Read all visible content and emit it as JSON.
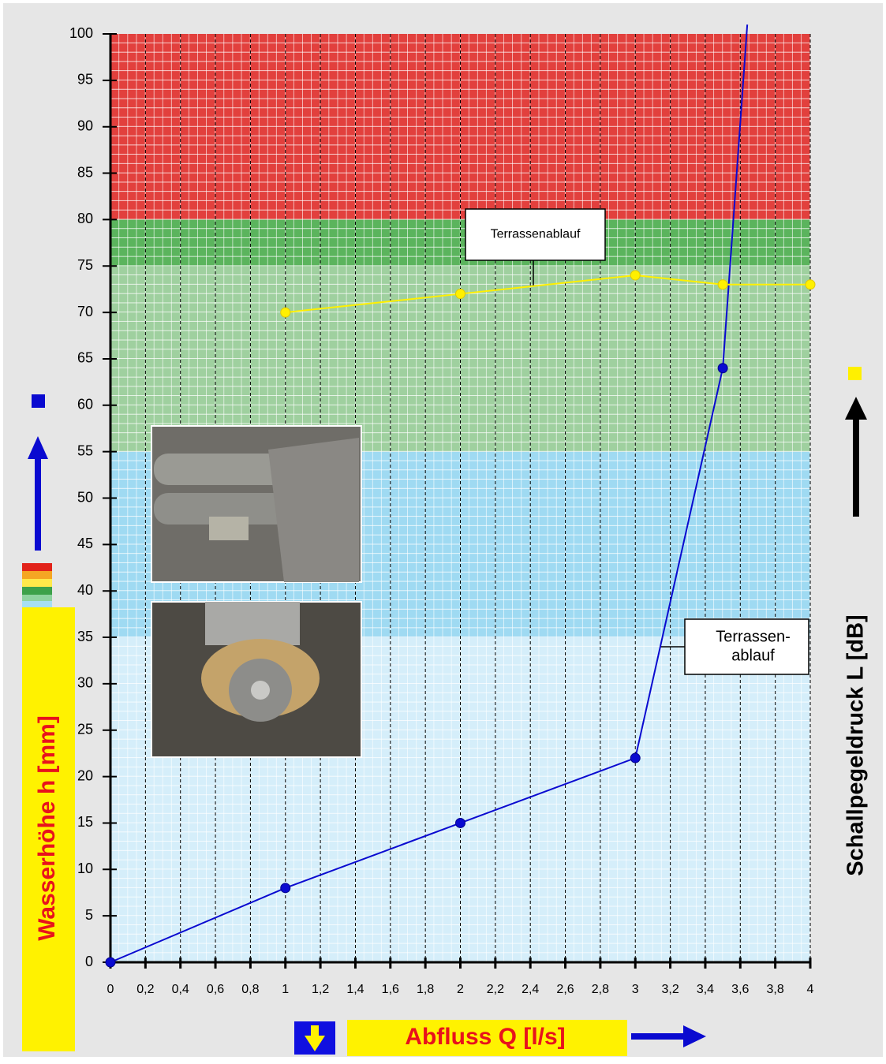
{
  "chart_data": {
    "type": "line",
    "xlabel": "Abfluss Q [l/s]",
    "ylabel": "Wasserhöhe h [mm]",
    "y2label": "Schallpegeldruck L [dB]",
    "xlim": [
      0,
      4
    ],
    "ylim": [
      0,
      100
    ],
    "xticks": [
      0,
      {
        "value": 0.2,
        "label": "0,2"
      },
      {
        "value": 0.4,
        "label": "0,4"
      },
      {
        "value": 0.6,
        "label": "0,6"
      },
      {
        "value": 0.8,
        "label": "0,8"
      },
      1,
      {
        "value": 1.2,
        "label": "1,2"
      },
      {
        "value": 1.4,
        "label": "1,4"
      },
      {
        "value": 1.6,
        "label": "1,6"
      },
      {
        "value": 1.8,
        "label": "1,8"
      },
      2,
      {
        "value": 2.2,
        "label": "2,2"
      },
      {
        "value": 2.4,
        "label": "2,4"
      },
      {
        "value": 2.6,
        "label": "2,6"
      },
      {
        "value": 2.8,
        "label": "2,8"
      },
      3,
      {
        "value": 3.2,
        "label": "3,2"
      },
      {
        "value": 3.4,
        "label": "3,4"
      },
      {
        "value": 3.6,
        "label": "3,6"
      },
      {
        "value": 3.8,
        "label": "3,8"
      },
      4
    ],
    "yticks": [
      0,
      5,
      10,
      15,
      20,
      25,
      30,
      35,
      40,
      45,
      50,
      55,
      60,
      65,
      70,
      75,
      80,
      85,
      90,
      95,
      100
    ],
    "bands": [
      {
        "from": 0,
        "to": 35,
        "color": "#d5eefa"
      },
      {
        "from": 35,
        "to": 55,
        "color": "#9fdaf2"
      },
      {
        "from": 55,
        "to": 75,
        "color": "#9fd09f"
      },
      {
        "from": 75,
        "to": 80,
        "color": "#5bb45d"
      },
      {
        "from": 80,
        "to": 100,
        "color": "#e2403d"
      }
    ],
    "series": [
      {
        "color": "#0a0ad0",
        "x": [
          0,
          1,
          2,
          3,
          3.5,
          3.64
        ],
        "values": [
          0,
          8,
          15,
          22,
          64,
          101
        ]
      },
      {
        "color": "#fff000",
        "x": [
          1,
          2,
          3,
          3.5,
          4
        ],
        "values": [
          70,
          72,
          74,
          73,
          73
        ]
      }
    ],
    "annotations": [
      {
        "lines": [
          "Terrassenablauf"
        ]
      },
      {
        "lines": [
          "Terrassen-",
          "ablauf"
        ]
      }
    ]
  }
}
